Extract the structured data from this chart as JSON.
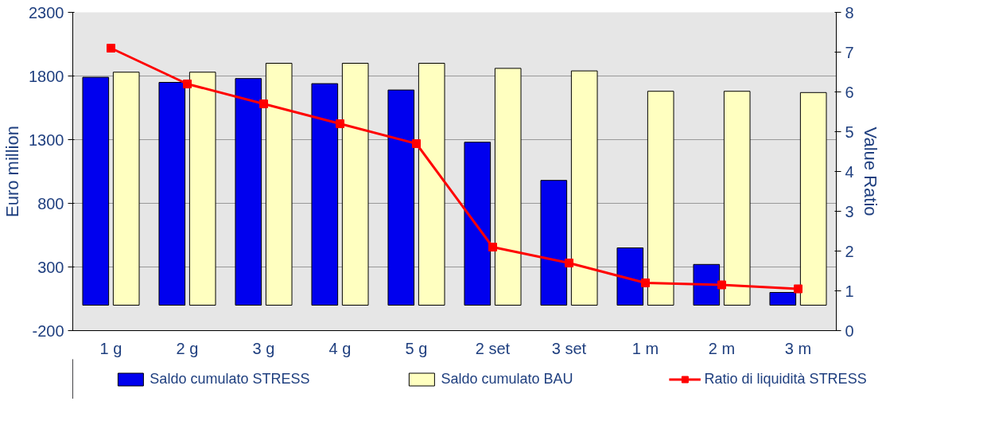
{
  "chart_data": {
    "type": "bar",
    "ylabel": "Euro million",
    "y2label": "Value Ratio",
    "categories": [
      "1 g",
      "2 g",
      "3 g",
      "4 g",
      "5 g",
      "2 set",
      "3 set",
      "1 m",
      "2 m",
      "3 m"
    ],
    "series": [
      {
        "name": "Saldo cumulato STRESS",
        "color": "#0000ee",
        "values": [
          1790,
          1750,
          1780,
          1740,
          1690,
          1280,
          980,
          450,
          320,
          100
        ]
      },
      {
        "name": "Saldo cumulato BAU",
        "color": "#ffffc0",
        "values": [
          1830,
          1830,
          1900,
          1900,
          1900,
          1860,
          1840,
          1680,
          1680,
          1670
        ]
      },
      {
        "name": "Ratio di liquidità STRESS",
        "type": "line",
        "axis": "y2",
        "color": "#ff0000",
        "marker": "square",
        "values": [
          7.1,
          6.2,
          5.7,
          5.2,
          4.7,
          2.1,
          1.7,
          1.2,
          1.15,
          1.05
        ]
      }
    ],
    "ylim": [
      -200,
      2300
    ],
    "yticks": [
      -200,
      300,
      800,
      1300,
      1800,
      2300
    ],
    "y2lim": [
      0,
      8
    ],
    "y2ticks": [
      0,
      1,
      2,
      3,
      4,
      5,
      6,
      7,
      8
    ],
    "grid": "y",
    "legend": "bottom"
  }
}
